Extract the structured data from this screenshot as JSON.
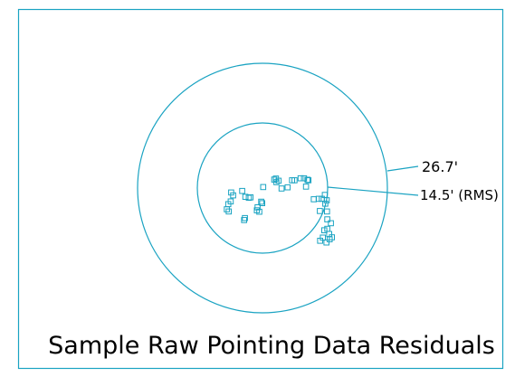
{
  "colors": {
    "frame": "#1aa3c2",
    "rings": "#1aa3c2",
    "markers": "#1aa3c2",
    "text": "#000000",
    "background": "#ffffff"
  },
  "caption": "Sample Raw Pointing Data Residuals",
  "rings": {
    "outer_label": "26.7'",
    "inner_label": "14.5' (RMS)"
  },
  "points": [
    [
      -1.2,
      -0.3
    ],
    [
      -1.28,
      -0.18
    ],
    [
      -1.3,
      -0.55
    ],
    [
      -1.46,
      -0.87
    ],
    [
      -1.38,
      -0.96
    ],
    [
      -1.4,
      -0.66
    ],
    [
      -0.83,
      -0.12
    ],
    [
      -0.7,
      -0.36
    ],
    [
      -0.49,
      -0.38
    ],
    [
      -0.56,
      -0.4
    ],
    [
      -0.72,
      -1.23
    ],
    [
      -0.75,
      -1.31
    ],
    [
      -0.13,
      -0.97
    ],
    [
      -0.23,
      -0.91
    ],
    [
      -0.2,
      -0.79
    ],
    [
      -0.01,
      -0.62
    ],
    [
      -0.05,
      -0.56
    ],
    [
      0.03,
      0.04
    ],
    [
      0.48,
      0.35
    ],
    [
      0.55,
      0.39
    ],
    [
      0.66,
      0.3
    ],
    [
      0.57,
      0.24
    ],
    [
      0.78,
      -0.02
    ],
    [
      1.21,
      0.32
    ],
    [
      1.31,
      0.32
    ],
    [
      1.03,
      0.03
    ],
    [
      1.56,
      0.4
    ],
    [
      1.7,
      0.4
    ],
    [
      1.88,
      0.32
    ],
    [
      1.84,
      0.34
    ],
    [
      1.78,
      0.06
    ],
    [
      2.1,
      -0.46
    ],
    [
      2.3,
      -0.44
    ],
    [
      2.43,
      -0.44
    ],
    [
      2.63,
      -0.5
    ],
    [
      2.55,
      -0.28
    ],
    [
      2.57,
      -0.64
    ],
    [
      2.35,
      -0.94
    ],
    [
      2.64,
      -0.96
    ],
    [
      2.65,
      -1.28
    ],
    [
      2.8,
      -1.44
    ],
    [
      2.65,
      -1.67
    ],
    [
      2.53,
      -1.73
    ],
    [
      2.73,
      -1.88
    ],
    [
      2.47,
      -2.03
    ],
    [
      2.75,
      -2.1
    ],
    [
      2.84,
      -2.02
    ],
    [
      2.62,
      -2.23
    ],
    [
      2.36,
      -2.16
    ]
  ]
}
